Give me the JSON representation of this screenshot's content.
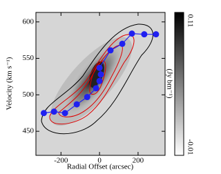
{
  "chart_data": {
    "type": "line",
    "xlabel": "Radial Offset (arcsec)",
    "ylabel": "Velocity (km s⁻¹)",
    "xlim": [
      -330,
      340
    ],
    "ylim": [
      417,
      613
    ],
    "xticks": [
      -200,
      0,
      200
    ],
    "yticks": [
      450,
      500,
      550,
      600
    ],
    "series": [
      {
        "color": "#2020f0",
        "x": [
          -289,
          -236,
          -179,
          -118,
          -64,
          -18,
          0,
          7,
          0,
          57,
          118,
          168,
          232,
          293
        ],
        "values": [
          475,
          477,
          475,
          487,
          497,
          509,
          519,
          528,
          537,
          561,
          570,
          584,
          583,
          583
        ]
      }
    ],
    "colorbar": {
      "label": "(Jy bm⁻¹)",
      "lim": [
        -0.01,
        0.11
      ],
      "ticks": [
        -0.01,
        0.11
      ]
    }
  }
}
